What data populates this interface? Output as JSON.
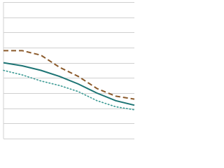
{
  "chart_data": {
    "type": "line",
    "categories": [
      null,
      null,
      null,
      null,
      null,
      null,
      null,
      null
    ],
    "ylim": [
      0,
      9
    ],
    "yticks": [
      0,
      1,
      2,
      3,
      4,
      5,
      6,
      7,
      8,
      9
    ],
    "grid": true,
    "series": [
      {
        "color": "#8b5a2b",
        "dash": "dashed",
        "values": [
          5.8,
          5.8,
          5.5,
          4.7,
          4.1,
          3.3,
          2.8,
          2.6
        ]
      },
      {
        "color": "#1d7474",
        "dash": "solid",
        "values": [
          5.0,
          4.8,
          4.5,
          4.1,
          3.6,
          3.0,
          2.5,
          2.2
        ]
      },
      {
        "color": "#3b9a94",
        "dash": "dotted",
        "values": [
          4.5,
          4.2,
          3.8,
          3.5,
          3.1,
          2.5,
          2.1,
          1.9
        ]
      }
    ]
  }
}
